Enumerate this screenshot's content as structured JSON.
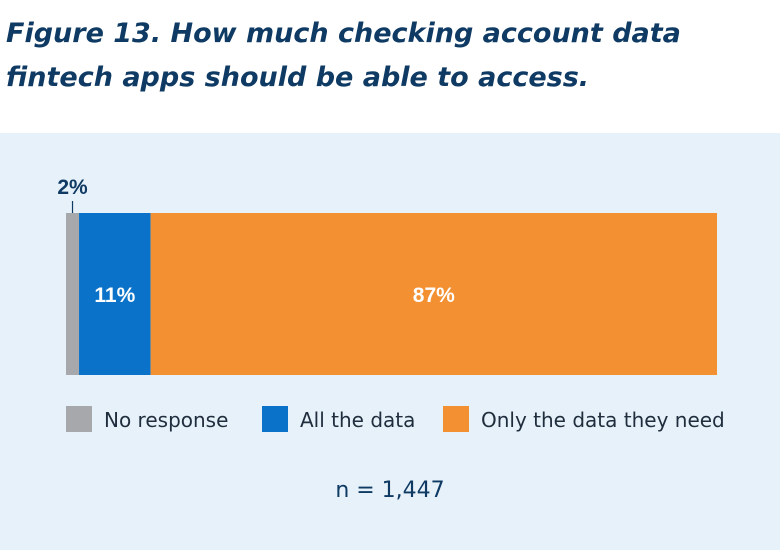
{
  "figure": {
    "title": "Figure 13. How much checking account data fintech apps should be able to access.",
    "note": "n = 1,447"
  },
  "chart_data": {
    "type": "bar",
    "orientation": "horizontal",
    "stacked": true,
    "unit": "%",
    "categories": [
      ""
    ],
    "series": [
      {
        "name": "No response",
        "values": [
          2
        ],
        "label": "2%",
        "color": "#a6a8ab"
      },
      {
        "name": "All the data",
        "values": [
          11
        ],
        "label": "11%",
        "color": "#0a73c9"
      },
      {
        "name": "Only the data they need",
        "values": [
          87
        ],
        "label": "87%",
        "color": "#f39031"
      }
    ],
    "xlim": [
      0,
      100
    ],
    "grid": false,
    "legend": "bottom"
  }
}
